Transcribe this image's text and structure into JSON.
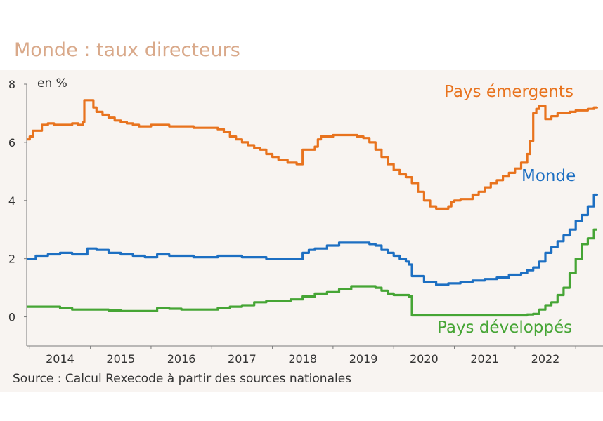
{
  "chart_data": {
    "type": "line",
    "title": "Monde : taux directeurs",
    "ylabel": "en %",
    "source": "Source : Calcul Rexecode à partir des sources nationales",
    "ylim": [
      -1,
      8
    ],
    "xlim": [
      2013.45,
      2022.95
    ],
    "y_ticks": [
      0,
      2,
      4,
      6,
      8
    ],
    "x_ticks": [
      {
        "label": "2014",
        "at": 2014
      },
      {
        "label": "2015",
        "at": 2015
      },
      {
        "label": "2016",
        "at": 2016
      },
      {
        "label": "2017",
        "at": 2017
      },
      {
        "label": "2018",
        "at": 2018
      },
      {
        "label": "2019",
        "at": 2019
      },
      {
        "label": "2020",
        "at": 2020
      },
      {
        "label": "2021",
        "at": 2021
      },
      {
        "label": "2022",
        "at": 2022
      }
    ],
    "grid": false,
    "series": [
      {
        "name": "Pays émergents",
        "color": "#e8731e",
        "x": [
          2013.45,
          2013.5,
          2013.55,
          2013.7,
          2013.8,
          2013.9,
          2014.0,
          2014.2,
          2014.3,
          2014.38,
          2014.4,
          2014.55,
          2014.6,
          2014.7,
          2014.8,
          2014.9,
          2015.0,
          2015.1,
          2015.2,
          2015.3,
          2015.4,
          2015.5,
          2015.6,
          2015.7,
          2015.8,
          2015.9,
          2016.0,
          2016.2,
          2016.4,
          2016.5,
          2016.6,
          2016.7,
          2016.8,
          2016.9,
          2017.0,
          2017.1,
          2017.2,
          2017.3,
          2017.4,
          2017.5,
          2017.6,
          2017.75,
          2017.9,
          2017.95,
          2018.0,
          2018.2,
          2018.25,
          2018.3,
          2018.5,
          2018.7,
          2018.9,
          2019.0,
          2019.1,
          2019.2,
          2019.3,
          2019.4,
          2019.5,
          2019.6,
          2019.7,
          2019.8,
          2019.9,
          2020.0,
          2020.1,
          2020.2,
          2020.3,
          2020.4,
          2020.45,
          2020.5,
          2020.6,
          2020.7,
          2020.8,
          2020.9,
          2021.0,
          2021.1,
          2021.2,
          2021.3,
          2021.4,
          2021.5,
          2021.6,
          2021.7,
          2021.75,
          2021.8,
          2021.85,
          2021.9,
          2022.0,
          2022.1,
          2022.2,
          2022.3,
          2022.4,
          2022.5,
          2022.6,
          2022.7,
          2022.8,
          2022.85
        ],
        "values": [
          6.1,
          6.2,
          6.4,
          6.6,
          6.65,
          6.6,
          6.6,
          6.65,
          6.6,
          6.7,
          7.45,
          7.2,
          7.05,
          6.95,
          6.85,
          6.75,
          6.7,
          6.65,
          6.6,
          6.55,
          6.55,
          6.6,
          6.6,
          6.6,
          6.55,
          6.55,
          6.55,
          6.5,
          6.5,
          6.5,
          6.45,
          6.35,
          6.2,
          6.1,
          6.0,
          5.9,
          5.8,
          5.75,
          5.6,
          5.5,
          5.4,
          5.3,
          5.25,
          5.25,
          5.75,
          5.85,
          6.1,
          6.2,
          6.25,
          6.25,
          6.2,
          6.15,
          6.0,
          5.75,
          5.5,
          5.25,
          5.05,
          4.9,
          4.8,
          4.6,
          4.3,
          4.0,
          3.8,
          3.72,
          3.72,
          3.8,
          3.95,
          4.0,
          4.05,
          4.05,
          4.2,
          4.3,
          4.45,
          4.6,
          4.7,
          4.85,
          4.95,
          5.1,
          5.3,
          5.6,
          6.05,
          7.0,
          7.15,
          7.25,
          6.8,
          6.9,
          7.0,
          7.0,
          7.05,
          7.1,
          7.1,
          7.15,
          7.2,
          7.22
        ]
      },
      {
        "name": "Monde",
        "color": "#1d6fc2",
        "x": [
          2013.45,
          2013.6,
          2013.8,
          2014.0,
          2014.2,
          2014.4,
          2014.45,
          2014.6,
          2014.8,
          2015.0,
          2015.2,
          2015.4,
          2015.6,
          2015.8,
          2016.0,
          2016.2,
          2016.4,
          2016.6,
          2016.8,
          2017.0,
          2017.2,
          2017.4,
          2017.6,
          2017.8,
          2018.0,
          2018.1,
          2018.2,
          2018.4,
          2018.6,
          2018.8,
          2019.0,
          2019.1,
          2019.2,
          2019.3,
          2019.4,
          2019.5,
          2019.6,
          2019.7,
          2019.75,
          2019.8,
          2020.0,
          2020.2,
          2020.4,
          2020.6,
          2020.8,
          2021.0,
          2021.2,
          2021.4,
          2021.6,
          2021.7,
          2021.8,
          2021.9,
          2022.0,
          2022.1,
          2022.2,
          2022.3,
          2022.4,
          2022.5,
          2022.6,
          2022.7,
          2022.8,
          2022.85
        ],
        "values": [
          2.0,
          2.1,
          2.15,
          2.2,
          2.15,
          2.15,
          2.35,
          2.3,
          2.2,
          2.15,
          2.1,
          2.05,
          2.15,
          2.1,
          2.1,
          2.05,
          2.05,
          2.1,
          2.1,
          2.05,
          2.05,
          2.0,
          2.0,
          2.0,
          2.2,
          2.3,
          2.35,
          2.45,
          2.55,
          2.55,
          2.55,
          2.5,
          2.45,
          2.3,
          2.2,
          2.1,
          2.0,
          1.9,
          1.8,
          1.4,
          1.2,
          1.1,
          1.15,
          1.2,
          1.25,
          1.3,
          1.35,
          1.45,
          1.5,
          1.6,
          1.7,
          1.9,
          2.2,
          2.4,
          2.6,
          2.8,
          3.0,
          3.3,
          3.5,
          3.8,
          4.2,
          4.22
        ]
      },
      {
        "name": "Pays développés",
        "color": "#46a535",
        "x": [
          2013.45,
          2013.8,
          2014.0,
          2014.2,
          2014.5,
          2014.8,
          2015.0,
          2015.3,
          2015.5,
          2015.6,
          2015.8,
          2016.0,
          2016.2,
          2016.4,
          2016.6,
          2016.8,
          2017.0,
          2017.2,
          2017.4,
          2017.6,
          2017.8,
          2018.0,
          2018.2,
          2018.4,
          2018.6,
          2018.8,
          2019.0,
          2019.1,
          2019.2,
          2019.3,
          2019.4,
          2019.5,
          2019.6,
          2019.7,
          2019.75,
          2019.8,
          2020.0,
          2020.5,
          2021.0,
          2021.4,
          2021.6,
          2021.7,
          2021.8,
          2021.9,
          2022.0,
          2022.1,
          2022.2,
          2022.3,
          2022.4,
          2022.5,
          2022.6,
          2022.7,
          2022.8,
          2022.85
        ],
        "values": [
          0.35,
          0.35,
          0.3,
          0.25,
          0.25,
          0.22,
          0.2,
          0.2,
          0.2,
          0.3,
          0.28,
          0.25,
          0.25,
          0.25,
          0.3,
          0.35,
          0.4,
          0.5,
          0.55,
          0.55,
          0.6,
          0.7,
          0.8,
          0.85,
          0.95,
          1.05,
          1.05,
          1.05,
          1.0,
          0.9,
          0.8,
          0.75,
          0.75,
          0.75,
          0.7,
          0.05,
          0.05,
          0.05,
          0.05,
          0.05,
          0.05,
          0.08,
          0.1,
          0.25,
          0.4,
          0.5,
          0.75,
          1.0,
          1.5,
          2.0,
          2.5,
          2.7,
          3.0,
          3.0
        ]
      }
    ]
  }
}
